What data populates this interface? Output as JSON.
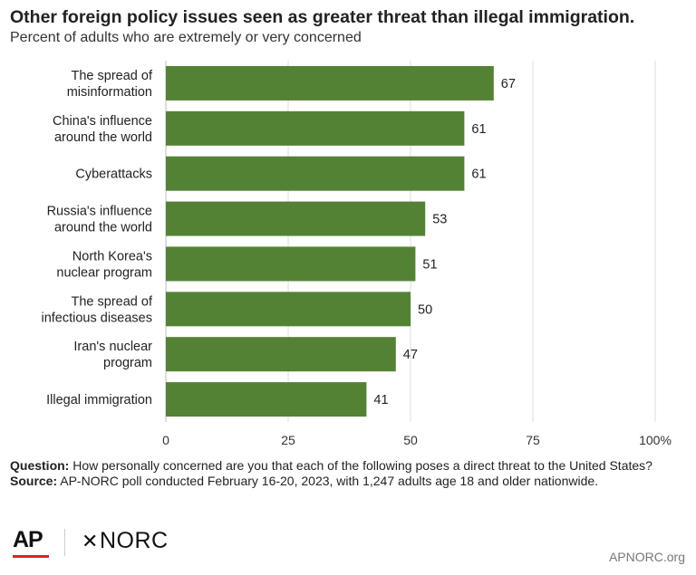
{
  "title": "Other foreign policy issues seen as greater threat than illegal immigration.",
  "subtitle": "Percent of adults who are extremely or very concerned",
  "chart_data": {
    "type": "bar",
    "orientation": "horizontal",
    "categories": [
      [
        "The spread of",
        "misinformation"
      ],
      [
        "China's influence",
        "around the world"
      ],
      [
        "Cyberattacks"
      ],
      [
        "Russia's influence",
        "around the world"
      ],
      [
        "North Korea's",
        "nuclear program"
      ],
      [
        "The spread of",
        "infectious diseases"
      ],
      [
        "Iran's nuclear",
        "program"
      ],
      [
        "Illegal immigration"
      ]
    ],
    "values": [
      67,
      61,
      61,
      53,
      51,
      50,
      47,
      41
    ],
    "xlim": [
      0,
      100
    ],
    "ticks": [
      0,
      25,
      50,
      75,
      100
    ],
    "tick_labels": [
      "0",
      "25",
      "50",
      "75",
      "100%"
    ],
    "bar_color": "#548235",
    "grid": true
  },
  "notes": {
    "question_label": "Question:",
    "question_text": "How personally concerned are you that each of the following poses a direct threat to the United States?",
    "source_label": "Source:",
    "source_text": "AP-NORC poll conducted February 16-20, 2023, with 1,247 adults age 18 and older nationwide."
  },
  "logos": {
    "ap": "AP",
    "norc_mark": "✕",
    "norc": "NORC",
    "ap_red": "#e0241b"
  },
  "site": "APNORC.org"
}
